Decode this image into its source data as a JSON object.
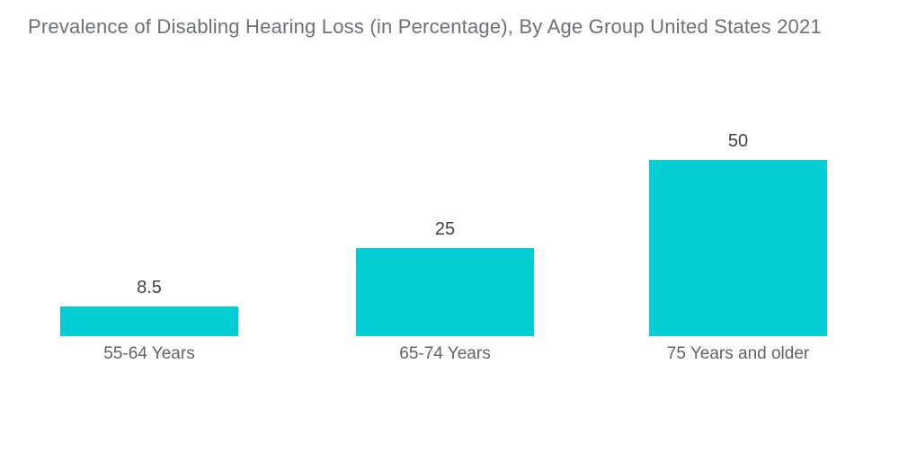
{
  "title": "Prevalence of Disabling Hearing Loss (in Percentage), By Age Group United States 2021",
  "chart_data": {
    "type": "bar",
    "title": "Prevalence of Disabling Hearing Loss (in Percentage), By Age Group United States 2021",
    "categories": [
      "55-64 Years",
      "65-74 Years",
      "75 Years and older"
    ],
    "values": [
      8.5,
      25,
      50
    ],
    "value_labels": [
      "8.5",
      "25",
      "50"
    ],
    "xlabel": "",
    "ylabel": "",
    "ylim": [
      0,
      50
    ],
    "grid": false,
    "legend": false,
    "axes_visible": false,
    "colors": {
      "bar": "#04CDD4",
      "title_text": "#6E7174",
      "value_label_text": "#404346",
      "category_label_text": "#5F6368",
      "background": "#FFFFFF"
    }
  }
}
